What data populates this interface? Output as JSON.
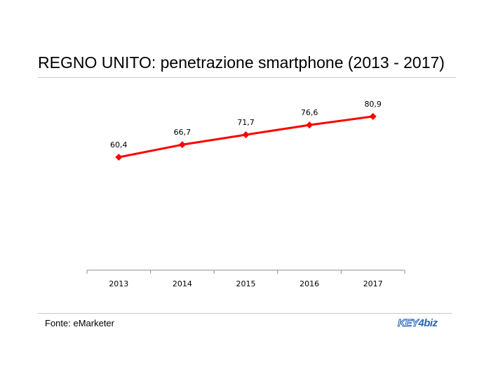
{
  "title": "REGNO UNITO: penetrazione smartphone (2013 - 2017)",
  "source": "Fonte: eMarketer",
  "logo": {
    "key": "KEY",
    "four": "4",
    "biz": "biz",
    "color": "#2a66b5"
  },
  "chart_data": {
    "type": "line",
    "title": "REGNO UNITO: penetrazione smartphone (2013 - 2017)",
    "categories": [
      "2013",
      "2014",
      "2015",
      "2016",
      "2017"
    ],
    "series": [
      {
        "values": [
          60.4,
          66.7,
          71.7,
          76.6,
          80.9
        ],
        "labels": [
          "60,4",
          "66,7",
          "71,7",
          "76,6",
          "80,9"
        ],
        "color": "#ff0000",
        "marker": "diamond"
      }
    ],
    "ylim": [
      0,
      100
    ],
    "xlabel": "",
    "ylabel": "",
    "grid": false,
    "legend": "none"
  }
}
